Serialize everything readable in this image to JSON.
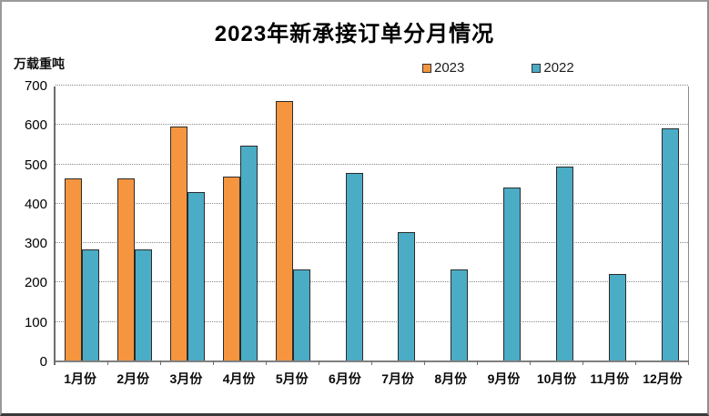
{
  "header": {
    "title": "2023年新承接订单分月情况",
    "unit_label": "万载重吨"
  },
  "legend": {
    "items": [
      {
        "label": "2023",
        "color": "#F5953F"
      },
      {
        "label": "2022",
        "color": "#4BACC6"
      }
    ]
  },
  "chart_data": {
    "type": "bar",
    "title": "2023年新承接订单分月情况",
    "ylabel": "万载重吨",
    "xlabel": "",
    "ylim": [
      0,
      700
    ],
    "ytick_step": 100,
    "yticks": [
      0,
      100,
      200,
      300,
      400,
      500,
      600,
      700
    ],
    "grid": "horizontal-dotted",
    "legend_position": "top-center",
    "categories": [
      "1月份",
      "2月份",
      "3月份",
      "4月份",
      "5月份",
      "6月份",
      "7月份",
      "8月份",
      "9月份",
      "10月份",
      "11月份",
      "12月份"
    ],
    "series": [
      {
        "name": "2023",
        "color": "#F5953F",
        "values": [
          461,
          463,
          593,
          467,
          658,
          null,
          null,
          null,
          null,
          null,
          null,
          null
        ]
      },
      {
        "name": "2022",
        "color": "#4BACC6",
        "values": [
          281,
          283,
          428,
          546,
          230,
          477,
          326,
          232,
          440,
          493,
          220,
          590
        ]
      }
    ]
  }
}
